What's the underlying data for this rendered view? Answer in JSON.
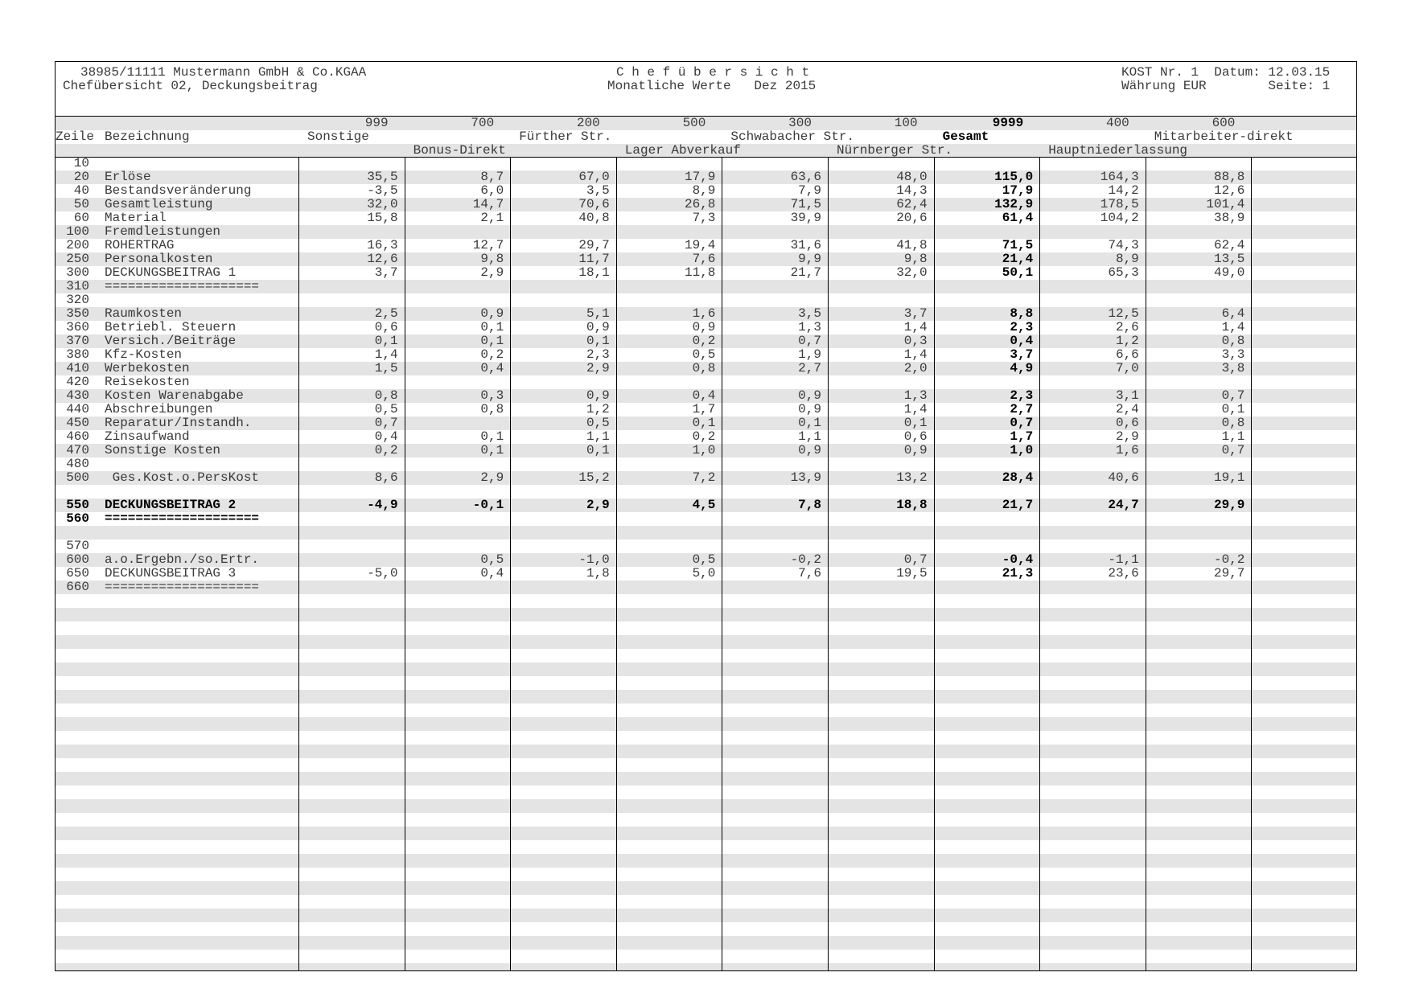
{
  "header": {
    "company": "38985/11111 Mustermann GmbH & Co.KGAA",
    "report": "Chefübersicht 02, Deckungsbeitrag",
    "title": "C h e f ü b e r s i c h t",
    "subtitle": "Monatliche Werte   Dez 2015",
    "kost_datum": "KOST Nr. 1  Datum: 12.03.15",
    "waehrung_seite": "Währung EUR        Seite: 1"
  },
  "columns": {
    "zeile_label": "Zeile",
    "bezeichnung_label": "Bezeichnung",
    "items": [
      {
        "code": "999",
        "name": "Sonstige",
        "line": 2,
        "bold": false
      },
      {
        "code": "700",
        "name": "Bonus-Direkt",
        "line": 3,
        "bold": false
      },
      {
        "code": "200",
        "name": "Fürther Str.",
        "line": 2,
        "bold": false
      },
      {
        "code": "500",
        "name": "Lager Abverkauf",
        "line": 3,
        "bold": false
      },
      {
        "code": "300",
        "name": "Schwabacher Str.",
        "line": 2,
        "bold": false
      },
      {
        "code": "100",
        "name": "Nürnberger Str.",
        "line": 3,
        "bold": false
      },
      {
        "code": "9999",
        "name": "Gesamt",
        "line": 2,
        "bold": true
      },
      {
        "code": "400",
        "name": "Hauptniederlassung",
        "line": 3,
        "bold": false
      },
      {
        "code": "600",
        "name": "Mitarbeiter-direkt",
        "line": 2,
        "bold": false
      }
    ]
  },
  "rows": [
    {
      "zeile": "10",
      "label": "",
      "values": []
    },
    {
      "zeile": "20",
      "label": "Erlöse",
      "values": [
        "35,5",
        "8,7",
        "67,0",
        "17,9",
        "63,6",
        "48,0",
        "115,0",
        "164,3",
        "88,8"
      ]
    },
    {
      "zeile": "40",
      "label": "Bestandsveränderung",
      "values": [
        "-3,5",
        "6,0",
        "3,5",
        "8,9",
        "7,9",
        "14,3",
        "17,9",
        "14,2",
        "12,6"
      ]
    },
    {
      "zeile": "50",
      "label": "Gesamtleistung",
      "values": [
        "32,0",
        "14,7",
        "70,6",
        "26,8",
        "71,5",
        "62,4",
        "132,9",
        "178,5",
        "101,4"
      ]
    },
    {
      "zeile": "60",
      "label": "Material",
      "values": [
        "15,8",
        "2,1",
        "40,8",
        "7,3",
        "39,9",
        "20,6",
        "61,4",
        "104,2",
        "38,9"
      ]
    },
    {
      "zeile": "100",
      "label": "Fremdleistungen",
      "values": []
    },
    {
      "zeile": "200",
      "label": "ROHERTRAG",
      "values": [
        "16,3",
        "12,7",
        "29,7",
        "19,4",
        "31,6",
        "41,8",
        "71,5",
        "74,3",
        "62,4"
      ]
    },
    {
      "zeile": "250",
      "label": "Personalkosten",
      "values": [
        "12,6",
        "9,8",
        "11,7",
        "7,6",
        "9,9",
        "9,8",
        "21,4",
        "8,9",
        "13,5"
      ]
    },
    {
      "zeile": "300",
      "label": "DECKUNGSBEITRAG 1",
      "values": [
        "3,7",
        "2,9",
        "18,1",
        "11,8",
        "21,7",
        "32,0",
        "50,1",
        "65,3",
        "49,0"
      ]
    },
    {
      "zeile": "310",
      "label": "====================",
      "values": []
    },
    {
      "zeile": "320",
      "label": "",
      "values": []
    },
    {
      "zeile": "350",
      "label": "Raumkosten",
      "values": [
        "2,5",
        "0,9",
        "5,1",
        "1,6",
        "3,5",
        "3,7",
        "8,8",
        "12,5",
        "6,4"
      ]
    },
    {
      "zeile": "360",
      "label": "Betriebl. Steuern",
      "values": [
        "0,6",
        "0,1",
        "0,9",
        "0,9",
        "1,3",
        "1,4",
        "2,3",
        "2,6",
        "1,4"
      ]
    },
    {
      "zeile": "370",
      "label": "Versich./Beiträge",
      "values": [
        "0,1",
        "0,1",
        "0,1",
        "0,2",
        "0,7",
        "0,3",
        "0,4",
        "1,2",
        "0,8"
      ]
    },
    {
      "zeile": "380",
      "label": "Kfz-Kosten",
      "values": [
        "1,4",
        "0,2",
        "2,3",
        "0,5",
        "1,9",
        "1,4",
        "3,7",
        "6,6",
        "3,3"
      ]
    },
    {
      "zeile": "410",
      "label": "Werbekosten",
      "values": [
        "1,5",
        "0,4",
        "2,9",
        "0,8",
        "2,7",
        "2,0",
        "4,9",
        "7,0",
        "3,8"
      ]
    },
    {
      "zeile": "420",
      "label": "Reisekosten",
      "values": []
    },
    {
      "zeile": "430",
      "label": "Kosten Warenabgabe",
      "values": [
        "0,8",
        "0,3",
        "0,9",
        "0,4",
        "0,9",
        "1,3",
        "2,3",
        "3,1",
        "0,7"
      ]
    },
    {
      "zeile": "440",
      "label": "Abschreibungen",
      "values": [
        "0,5",
        "0,8",
        "1,2",
        "1,7",
        "0,9",
        "1,4",
        "2,7",
        "2,4",
        "0,1"
      ]
    },
    {
      "zeile": "450",
      "label": "Reparatur/Instandh.",
      "values": [
        "0,7",
        "",
        "0,5",
        "0,1",
        "0,1",
        "0,1",
        "0,7",
        "0,6",
        "0,8"
      ]
    },
    {
      "zeile": "460",
      "label": "Zinsaufwand",
      "values": [
        "0,4",
        "0,1",
        "1,1",
        "0,2",
        "1,1",
        "0,6",
        "1,7",
        "2,9",
        "1,1"
      ]
    },
    {
      "zeile": "470",
      "label": "Sonstige Kosten",
      "values": [
        "0,2",
        "0,1",
        "0,1",
        "1,0",
        "0,9",
        "0,9",
        "1,0",
        "1,6",
        "0,7"
      ]
    },
    {
      "zeile": "480",
      "label": "",
      "values": []
    },
    {
      "zeile": "500",
      "label": " Ges.Kost.o.PersKost",
      "values": [
        "8,6",
        "2,9",
        "15,2",
        "7,2",
        "13,9",
        "13,2",
        "28,4",
        "40,6",
        "19,1"
      ]
    },
    {
      "zeile": "",
      "label": "",
      "values": []
    },
    {
      "zeile": "550",
      "label": "DECKUNGSBEITRAG 2",
      "values": [
        "-4,9",
        "-0,1",
        "2,9",
        "4,5",
        "7,8",
        "18,8",
        "21,7",
        "24,7",
        "29,9"
      ],
      "bold": true
    },
    {
      "zeile": "560",
      "label": "====================",
      "values": [],
      "bold": true
    },
    {
      "zeile": "",
      "label": "",
      "values": []
    },
    {
      "zeile": "570",
      "label": "",
      "values": []
    },
    {
      "zeile": "600",
      "label": "a.o.Ergebn./so.Ertr.",
      "values": [
        "",
        "0,5",
        "-1,0",
        "0,5",
        "-0,2",
        "0,7",
        "-0,4",
        "-1,1",
        "-0,2"
      ]
    },
    {
      "zeile": "650",
      "label": "DECKUNGSBEITRAG 3",
      "values": [
        "-5,0",
        "0,4",
        "1,8",
        "5,0",
        "7,6",
        "19,5",
        "21,3",
        "23,6",
        "29,7"
      ]
    },
    {
      "zeile": "660",
      "label": "====================",
      "values": []
    }
  ],
  "style": {
    "stripe": "#e4e4e4",
    "total_column_index": 6
  }
}
